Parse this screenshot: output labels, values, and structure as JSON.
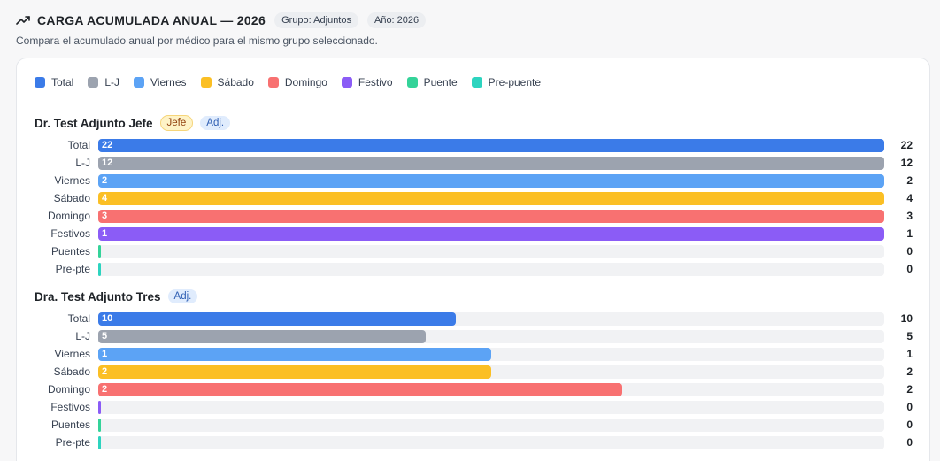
{
  "header": {
    "title": "CARGA ACUMULADA ANUAL — 2026",
    "chips": [
      "Grupo: Adjuntos",
      "Año: 2026"
    ],
    "subtitle": "Compara el acumulado anual por médico para el mismo grupo seleccionado."
  },
  "legend": [
    {
      "label": "Total",
      "color": "#3b7be8"
    },
    {
      "label": "L-J",
      "color": "#9ca3af"
    },
    {
      "label": "Viernes",
      "color": "#5ca3f5"
    },
    {
      "label": "Sábado",
      "color": "#fbbf24"
    },
    {
      "label": "Domingo",
      "color": "#f87171"
    },
    {
      "label": "Festivo",
      "color": "#8b5cf6"
    },
    {
      "label": "Puente",
      "color": "#34d399"
    },
    {
      "label": "Pre-puente",
      "color": "#2dd4bf"
    }
  ],
  "chart_data": {
    "type": "bar",
    "orientation": "horizontal",
    "categories": [
      "Total",
      "L-J",
      "Viernes",
      "Sábado",
      "Domingo",
      "Festivos",
      "Puentes",
      "Pre-pte"
    ],
    "colors": [
      "#3b7be8",
      "#9ca3af",
      "#5ca3f5",
      "#fbbf24",
      "#f87171",
      "#8b5cf6",
      "#34d399",
      "#2dd4bf"
    ],
    "series": [
      {
        "name": "Dr. Test Adjunto Jefe",
        "badges": [
          "Jefe",
          "Adj."
        ],
        "values": [
          22,
          12,
          2,
          4,
          3,
          1,
          0,
          0
        ],
        "fill_fraction": [
          1.0,
          1.0,
          1.0,
          1.0,
          1.0,
          1.0,
          0.0,
          0.0
        ]
      },
      {
        "name": "Dra. Test Adjunto Tres",
        "badges": [
          "Adj."
        ],
        "values": [
          10,
          5,
          1,
          2,
          2,
          0,
          0,
          0
        ],
        "fill_fraction": [
          0.455,
          0.417,
          0.5,
          0.5,
          0.667,
          0.0,
          0.0,
          0.0
        ]
      }
    ]
  }
}
